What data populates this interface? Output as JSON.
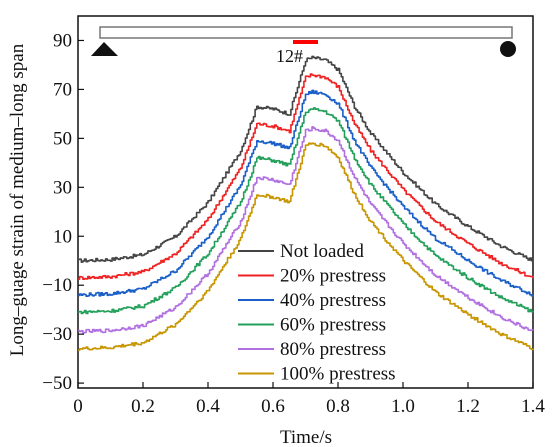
{
  "chart_data": {
    "type": "line",
    "xlabel": "Time/s",
    "ylabel": "Long–guage strain of medium–long span",
    "xlim": [
      0,
      1.4
    ],
    "ylim": [
      -52,
      100
    ],
    "xticks": [
      0,
      0.2,
      0.4,
      0.6,
      0.8,
      1.0,
      1.2,
      1.4
    ],
    "xtick_labels": [
      "0",
      "0.2",
      "0.4",
      "0.6",
      "0.8",
      "1.0",
      "1.2",
      "1.4"
    ],
    "yticks": [
      -50,
      -30,
      -10,
      10,
      30,
      50,
      70,
      90
    ],
    "ytick_labels": [
      "−50",
      "−30",
      "−10",
      "10",
      "30",
      "50",
      "70",
      "90"
    ],
    "legend_position": "bottom-center",
    "grid": false,
    "inset_diagram": {
      "sensor_label": "12#",
      "sensor_color": "#ff0000"
    },
    "series": [
      {
        "name": "Not loaded",
        "color": "#444444",
        "x": [
          0.0,
          0.1,
          0.2,
          0.3,
          0.4,
          0.5,
          0.55,
          0.6,
          0.65,
          0.7,
          0.72,
          0.76,
          0.8,
          0.85,
          0.9,
          1.0,
          1.1,
          1.2,
          1.3,
          1.4
        ],
        "y": [
          0,
          0.5,
          2.5,
          10,
          24,
          45,
          63,
          62,
          60,
          82,
          83,
          82,
          78,
          63,
          52,
          36,
          23,
          14,
          6,
          0
        ]
      },
      {
        "name": "20% prestress",
        "color": "#ee2222",
        "x": [
          0.0,
          0.1,
          0.2,
          0.3,
          0.4,
          0.5,
          0.55,
          0.6,
          0.65,
          0.7,
          0.72,
          0.76,
          0.8,
          0.85,
          0.9,
          1.0,
          1.1,
          1.2,
          1.3,
          1.4
        ],
        "y": [
          -7,
          -6.5,
          -4.5,
          3,
          17,
          38,
          56,
          55,
          53,
          75,
          76,
          75,
          71,
          56,
          45,
          29,
          16,
          7,
          -1,
          -7
        ]
      },
      {
        "name": "40% prestress",
        "color": "#1a5fc8",
        "x": [
          0.0,
          0.1,
          0.2,
          0.3,
          0.4,
          0.5,
          0.55,
          0.6,
          0.65,
          0.7,
          0.72,
          0.76,
          0.8,
          0.85,
          0.9,
          1.0,
          1.1,
          1.2,
          1.3,
          1.4
        ],
        "y": [
          -14,
          -13.5,
          -11.5,
          -4,
          10,
          31,
          49,
          48,
          46,
          68,
          69,
          68,
          64,
          49,
          38,
          22,
          9,
          0,
          -8,
          -14
        ]
      },
      {
        "name": "60% prestress",
        "color": "#22a05a",
        "x": [
          0.0,
          0.1,
          0.2,
          0.3,
          0.4,
          0.5,
          0.55,
          0.6,
          0.65,
          0.7,
          0.72,
          0.76,
          0.8,
          0.85,
          0.9,
          1.0,
          1.1,
          1.2,
          1.3,
          1.4
        ],
        "y": [
          -21,
          -20.5,
          -18.5,
          -11,
          3,
          24,
          42,
          41,
          39,
          61,
          62,
          61,
          57,
          42,
          31,
          15,
          2,
          -7,
          -15,
          -21
        ]
      },
      {
        "name": "80% prestress",
        "color": "#b070e0",
        "x": [
          0.0,
          0.1,
          0.2,
          0.3,
          0.4,
          0.5,
          0.55,
          0.6,
          0.65,
          0.7,
          0.72,
          0.76,
          0.8,
          0.85,
          0.9,
          1.0,
          1.1,
          1.2,
          1.3,
          1.4
        ],
        "y": [
          -29,
          -28.5,
          -26.5,
          -19,
          -5,
          16,
          34,
          33,
          31,
          53,
          54,
          53,
          49,
          34,
          23,
          7,
          -6,
          -15,
          -23,
          -29
        ]
      },
      {
        "name": "100% prestress",
        "color": "#c89600",
        "x": [
          0.0,
          0.1,
          0.2,
          0.3,
          0.4,
          0.5,
          0.55,
          0.6,
          0.65,
          0.7,
          0.72,
          0.76,
          0.8,
          0.85,
          0.9,
          1.0,
          1.1,
          1.2,
          1.3,
          1.4
        ],
        "y": [
          -36,
          -35.5,
          -33.5,
          -26,
          -12,
          9,
          27,
          26,
          24,
          47,
          48,
          47,
          42,
          27,
          16,
          0,
          -13,
          -22,
          -30,
          -36
        ]
      }
    ]
  }
}
